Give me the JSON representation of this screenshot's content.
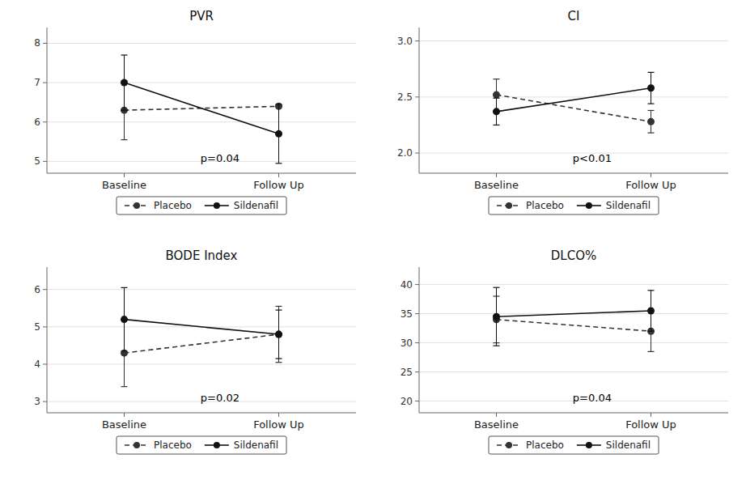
{
  "chart_data": [
    {
      "type": "line",
      "title": "PVR",
      "categories": [
        "Baseline",
        "Follow Up"
      ],
      "series": [
        {
          "name": "Placebo",
          "color": "#333333",
          "line_style": "dashed",
          "marker": "circle",
          "values": [
            6.3,
            6.4
          ],
          "errors": [
            0.75,
            0.0
          ]
        },
        {
          "name": "Sildenafil",
          "color": "#111111",
          "line_style": "solid",
          "marker": "circle",
          "values": [
            7.0,
            5.7
          ],
          "errors": [
            0.7,
            0.75
          ]
        }
      ],
      "annotations": [
        {
          "text": "p=0.04"
        }
      ],
      "ylim": [
        4.7,
        8.4
      ],
      "yticks": [
        5,
        6,
        7,
        8
      ],
      "grid": true,
      "legend": "bottom"
    },
    {
      "type": "line",
      "title": "CI",
      "categories": [
        "Baseline",
        "Follow Up"
      ],
      "series": [
        {
          "name": "Placebo",
          "color": "#333333",
          "line_style": "dashed",
          "marker": "circle",
          "values": [
            2.52,
            2.28
          ],
          "errors": [
            0.14,
            0.1
          ]
        },
        {
          "name": "Sildenafil",
          "color": "#111111",
          "line_style": "solid",
          "marker": "circle",
          "values": [
            2.37,
            2.58
          ],
          "errors": [
            0.12,
            0.14
          ]
        }
      ],
      "annotations": [
        {
          "text": "p<0.01"
        }
      ],
      "ylim": [
        1.82,
        3.12
      ],
      "yticks": [
        {
          "value": 2.0,
          "label": "2.0"
        },
        2.5,
        {
          "value": 3.0,
          "label": "3.0"
        }
      ],
      "grid": true,
      "legend": "bottom"
    },
    {
      "type": "line",
      "title": "BODE Index",
      "categories": [
        "Baseline",
        "Follow Up"
      ],
      "series": [
        {
          "name": "Placebo",
          "color": "#333333",
          "line_style": "dashed",
          "marker": "circle",
          "values": [
            4.3,
            4.8
          ],
          "errors": [
            0.9,
            0.75
          ]
        },
        {
          "name": "Sildenafil",
          "color": "#111111",
          "line_style": "solid",
          "marker": "circle",
          "values": [
            5.2,
            4.8
          ],
          "errors": [
            0.85,
            0.65
          ]
        }
      ],
      "annotations": [
        {
          "text": "p=0.02"
        }
      ],
      "ylim": [
        2.7,
        6.6
      ],
      "yticks": [
        3,
        4,
        5,
        6
      ],
      "grid": true,
      "legend": "bottom"
    },
    {
      "type": "line",
      "title": "DLCO%",
      "categories": [
        "Baseline",
        "Follow Up"
      ],
      "series": [
        {
          "name": "Placebo",
          "color": "#333333",
          "line_style": "dashed",
          "marker": "circle",
          "values": [
            34.0,
            32.0
          ],
          "errors": [
            4.0,
            3.5
          ]
        },
        {
          "name": "Sildenafil",
          "color": "#111111",
          "line_style": "solid",
          "marker": "circle",
          "values": [
            34.5,
            35.5
          ],
          "errors": [
            5.0,
            3.5
          ]
        }
      ],
      "annotations": [
        {
          "text": "p=0.04"
        }
      ],
      "ylim": [
        18.0,
        43.0
      ],
      "yticks": [
        20,
        25,
        30,
        35,
        40
      ],
      "grid": true,
      "legend": "bottom"
    }
  ]
}
